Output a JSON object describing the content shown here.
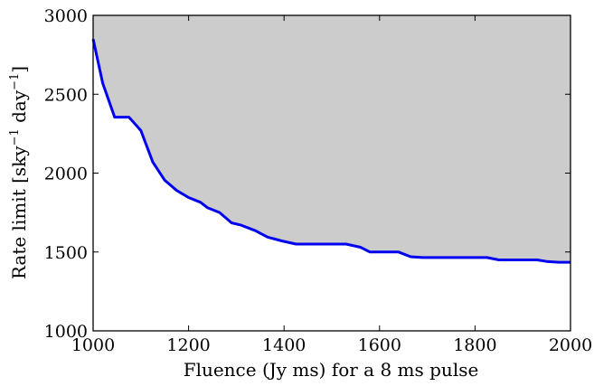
{
  "chart_data": {
    "type": "area",
    "title": "",
    "xlabel": "Fluence (Jy ms) for a 8 ms pulse",
    "ylabel": "Rate limit [sky",
    "ylabel_sup1": "−1",
    "ylabel_mid": " day",
    "ylabel_sup2": "−1",
    "ylabel_end": "]",
    "xlim": [
      1000,
      2000
    ],
    "ylim": [
      1000,
      3000
    ],
    "xticks": [
      1000,
      1200,
      1400,
      1600,
      1800,
      2000
    ],
    "yticks": [
      1000,
      1500,
      2000,
      2500,
      3000
    ],
    "grid": false,
    "colors": {
      "line": "#0000ee",
      "fill": "#cccccc",
      "axes": "#000000"
    },
    "series": [
      {
        "x": [
          1000,
          1020,
          1045,
          1075,
          1100,
          1125,
          1150,
          1175,
          1200,
          1225,
          1240,
          1265,
          1290,
          1310,
          1340,
          1365,
          1395,
          1425,
          1450,
          1480,
          1505,
          1530,
          1560,
          1580,
          1605,
          1640,
          1665,
          1690,
          1715,
          1740,
          1765,
          1790,
          1815,
          1825,
          1850,
          1875,
          1900,
          1930,
          1950,
          1975,
          2000
        ],
        "y": [
          2850,
          2570,
          2355,
          2355,
          2270,
          2070,
          1955,
          1890,
          1845,
          1815,
          1780,
          1750,
          1685,
          1670,
          1635,
          1595,
          1570,
          1550,
          1550,
          1550,
          1550,
          1550,
          1530,
          1500,
          1500,
          1500,
          1470,
          1465,
          1465,
          1465,
          1465,
          1465,
          1465,
          1465,
          1450,
          1450,
          1450,
          1450,
          1440,
          1435,
          1435
        ]
      }
    ]
  }
}
